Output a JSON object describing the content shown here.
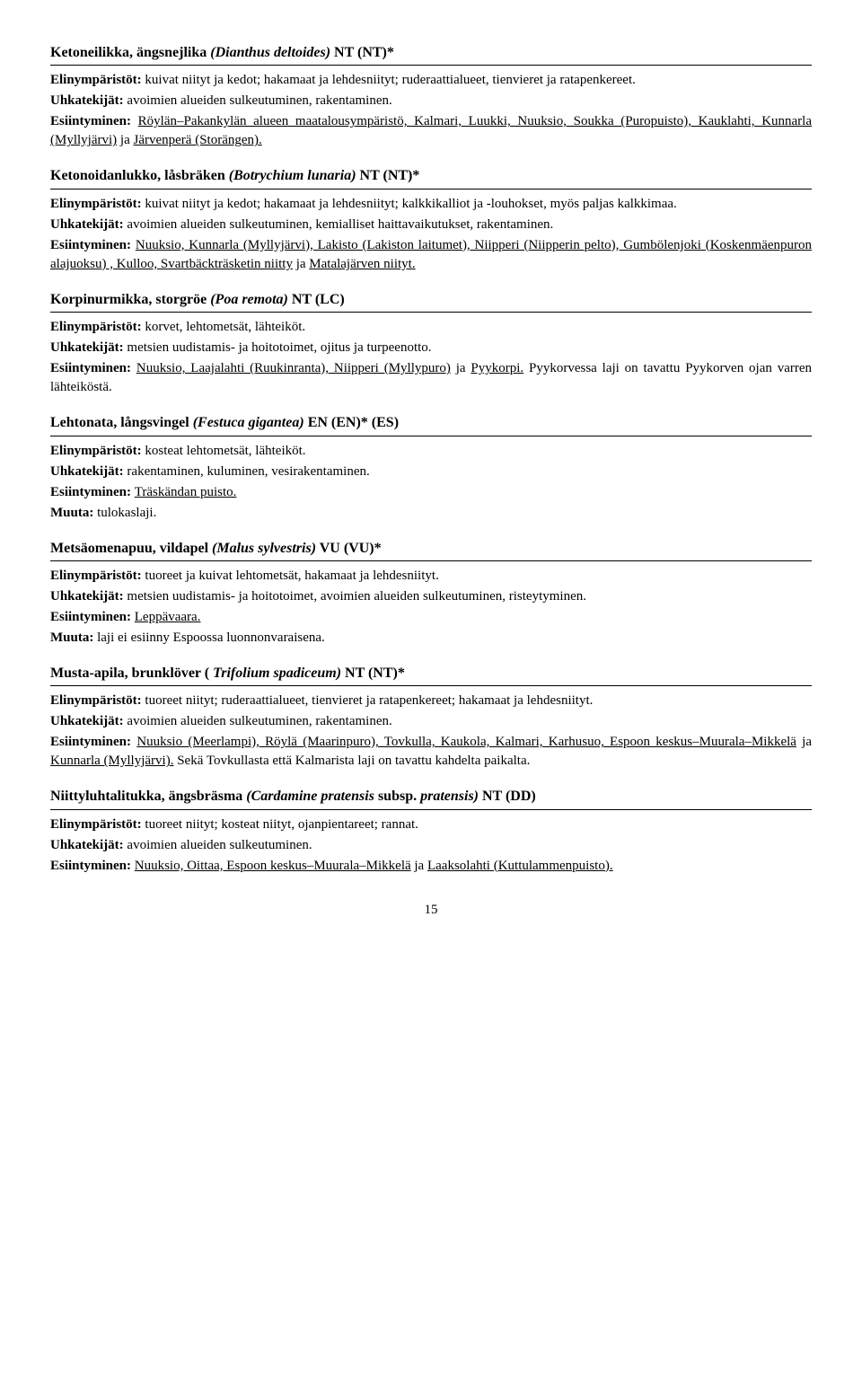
{
  "species": [
    {
      "name_fi": "Ketoneilikka, ängsnejlika",
      "latin": "(Dianthus deltoides)",
      "status": " NT (NT)*",
      "habitat": "kuivat niityt ja kedot; hakamaat ja lehdesniityt; ruderaattialueet, tienvieret ja ratapenkereet.",
      "threats": "avoimien alueiden sulkeutuminen, rakentaminen.",
      "occurrence_pre": "",
      "occurrence_places": "Röylän–Pakankylän alueen maatalousympäristö, Kalmari, Luukki, Nuuksio, Soukka (Puropuisto), Kauklahti, Kunnarla (Myllyjärvi)",
      "occurrence_mid": " ja ",
      "occurrence_places2": "Järvenperä (Storängen).",
      "occurrence_post": "",
      "other": ""
    },
    {
      "name_fi": "Ketonoidanlukko, låsbräken",
      "latin": "(Botrychium lunaria)",
      "status": " NT (NT)*",
      "habitat": "kuivat niityt ja kedot; hakamaat ja lehdesniityt; kalkkikalliot ja -louhokset, myös paljas kalkkimaa.",
      "threats": "avoimien alueiden sulkeutuminen, kemialliset haittavaikutukset, rakentaminen.",
      "occurrence_pre": "",
      "occurrence_places": "Nuuksio, Kunnarla (Myllyjärvi), Lakisto (Lakiston laitumet), Niipperi (Niipperin pelto), Gumbölenjoki (Koskenmäenpuron alajuoksu) , Kulloo, Svartbäckträsketin niitty",
      "occurrence_mid": " ja ",
      "occurrence_places2": "Matalajärven niityt.",
      "occurrence_post": "",
      "other": ""
    },
    {
      "name_fi": "Korpinurmikka, storgröe",
      "latin": "(Poa remota)",
      "status": " NT (LC)",
      "habitat": "korvet, lehtometsät, lähteiköt.",
      "threats": "metsien uudistamis- ja hoitotoimet, ojitus ja turpeenotto.",
      "occurrence_pre": "",
      "occurrence_places": "Nuuksio, Laajalahti (Ruukinranta), Niipperi (Myllypuro)",
      "occurrence_mid": " ja ",
      "occurrence_places2": "Pyykorpi.",
      "occurrence_post": " Pyykorvessa laji on tavattu Pyykorven ojan varren lähteiköstä.",
      "other": ""
    },
    {
      "name_fi": "Lehtonata, långsvingel",
      "latin": "(Festuca gigantea)",
      "status": " EN (EN)* (ES)",
      "habitat": "kosteat lehtometsät, lähteiköt.",
      "threats": "rakentaminen, kuluminen, vesirakentaminen.",
      "occurrence_pre": "",
      "occurrence_places": "Träskändan puisto.",
      "occurrence_mid": "",
      "occurrence_places2": "",
      "occurrence_post": "",
      "other": "tulokaslaji."
    },
    {
      "name_fi": "Metsäomenapuu, vildapel",
      "latin": "(Malus sylvestris)",
      "status": " VU (VU)*",
      "habitat": "tuoreet ja kuivat lehtometsät, hakamaat ja lehdesniityt.",
      "threats": "metsien uudistamis- ja hoitotoimet, avoimien alueiden sulkeutuminen, risteytyminen.",
      "occurrence_pre": "",
      "occurrence_places": "Leppävaara.",
      "occurrence_mid": "",
      "occurrence_places2": "",
      "occurrence_post": "",
      "other": "laji ei esiinny Espoossa luonnonvaraisena."
    },
    {
      "name_fi": "Musta-apila, brunklöver (",
      "latin": "Trifolium spadiceum)",
      "status": " NT (NT)*",
      "habitat": "tuoreet niityt; ruderaattialueet, tienvieret ja ratapenkereet; hakamaat ja lehdesniityt.",
      "threats": "avoimien alueiden sulkeutuminen, rakentaminen.",
      "occurrence_pre": "",
      "occurrence_places": "Nuuksio (Meerlampi), Röylä (Maarinpuro), Tovkulla, Kaukola, Kalmari, Karhusuo, Espoon keskus–Muurala–Mikkelä",
      "occurrence_mid": " ja ",
      "occurrence_places2": "Kunnarla (Myllyjärvi).",
      "occurrence_post": "  Sekä Tovkullasta että Kalmarista laji on tavattu kahdelta paikalta.",
      "other": ""
    },
    {
      "name_fi": "Niittyluhtalitukka, ängsbräsma",
      "latin": "(Cardamine pratensis",
      "status_pre": " subsp. ",
      "latin2": "pratensis)",
      "status": " NT (DD)",
      "habitat": "tuoreet niityt; kosteat niityt, ojanpientareet; rannat.",
      "threats": "avoimien alueiden sulkeutuminen.",
      "occurrence_pre": "",
      "occurrence_places": "Nuuksio, Oittaa, Espoon keskus–Muurala–Mikkelä",
      "occurrence_mid": " ja ",
      "occurrence_places2": "Laaksolahti (Kuttulammenpuisto).",
      "occurrence_post": "",
      "other": ""
    }
  ],
  "labels": {
    "habitat": "Elinympäristöt: ",
    "threats": "Uhkatekijät: ",
    "occurrence": "Esiintyminen: ",
    "other": "Muuta: "
  },
  "pagenum": "15"
}
